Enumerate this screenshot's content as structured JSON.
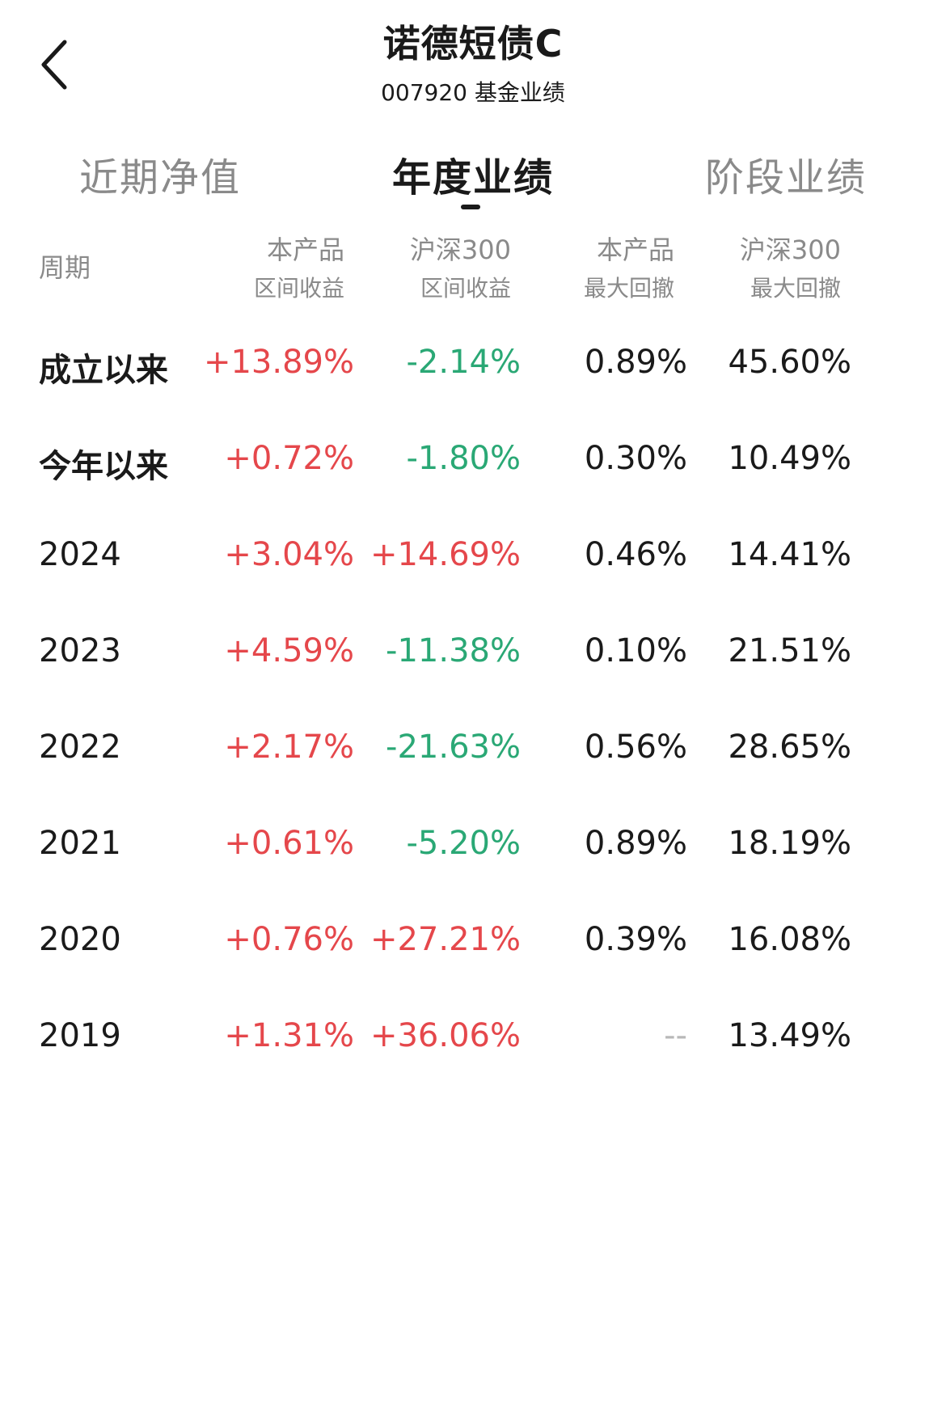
{
  "header": {
    "title": "诺德短债C",
    "subtitle": "007920 基金业绩"
  },
  "tabs": [
    {
      "label": "近期净值",
      "active": false
    },
    {
      "label": "年度业绩",
      "active": true
    },
    {
      "label": "阶段业绩",
      "active": false
    }
  ],
  "columns": {
    "period": "周期",
    "product_return": [
      "本产品",
      "区间收益"
    ],
    "index_return": [
      "沪深300",
      "区间收益"
    ],
    "product_drawdown": [
      "本产品",
      "最大回撤"
    ],
    "index_drawdown": [
      "沪深300",
      "最大回撤"
    ]
  },
  "rows": [
    {
      "period": "成立以来",
      "product_return": "+13.89%",
      "index_return": "-2.14%",
      "product_drawdown": "0.89%",
      "index_drawdown": "45.60%"
    },
    {
      "period": "今年以来",
      "product_return": "+0.72%",
      "index_return": "-1.80%",
      "product_drawdown": "0.30%",
      "index_drawdown": "10.49%"
    },
    {
      "period": "2024",
      "product_return": "+3.04%",
      "index_return": "+14.69%",
      "product_drawdown": "0.46%",
      "index_drawdown": "14.41%"
    },
    {
      "period": "2023",
      "product_return": "+4.59%",
      "index_return": "-11.38%",
      "product_drawdown": "0.10%",
      "index_drawdown": "21.51%"
    },
    {
      "period": "2022",
      "product_return": "+2.17%",
      "index_return": "-21.63%",
      "product_drawdown": "0.56%",
      "index_drawdown": "28.65%"
    },
    {
      "period": "2021",
      "product_return": "+0.61%",
      "index_return": "-5.20%",
      "product_drawdown": "0.89%",
      "index_drawdown": "18.19%"
    },
    {
      "period": "2020",
      "product_return": "+0.76%",
      "index_return": "+27.21%",
      "product_drawdown": "0.39%",
      "index_drawdown": "16.08%"
    },
    {
      "period": "2019",
      "product_return": "+1.31%",
      "index_return": "+36.06%",
      "product_drawdown": "--",
      "index_drawdown": "13.49%"
    }
  ],
  "colors": {
    "positive": "#e5474b",
    "negative": "#2aa875",
    "muted": "#8a8a8a",
    "text": "#1a1a1a"
  },
  "icons": {
    "back": "chevron-left-icon"
  }
}
